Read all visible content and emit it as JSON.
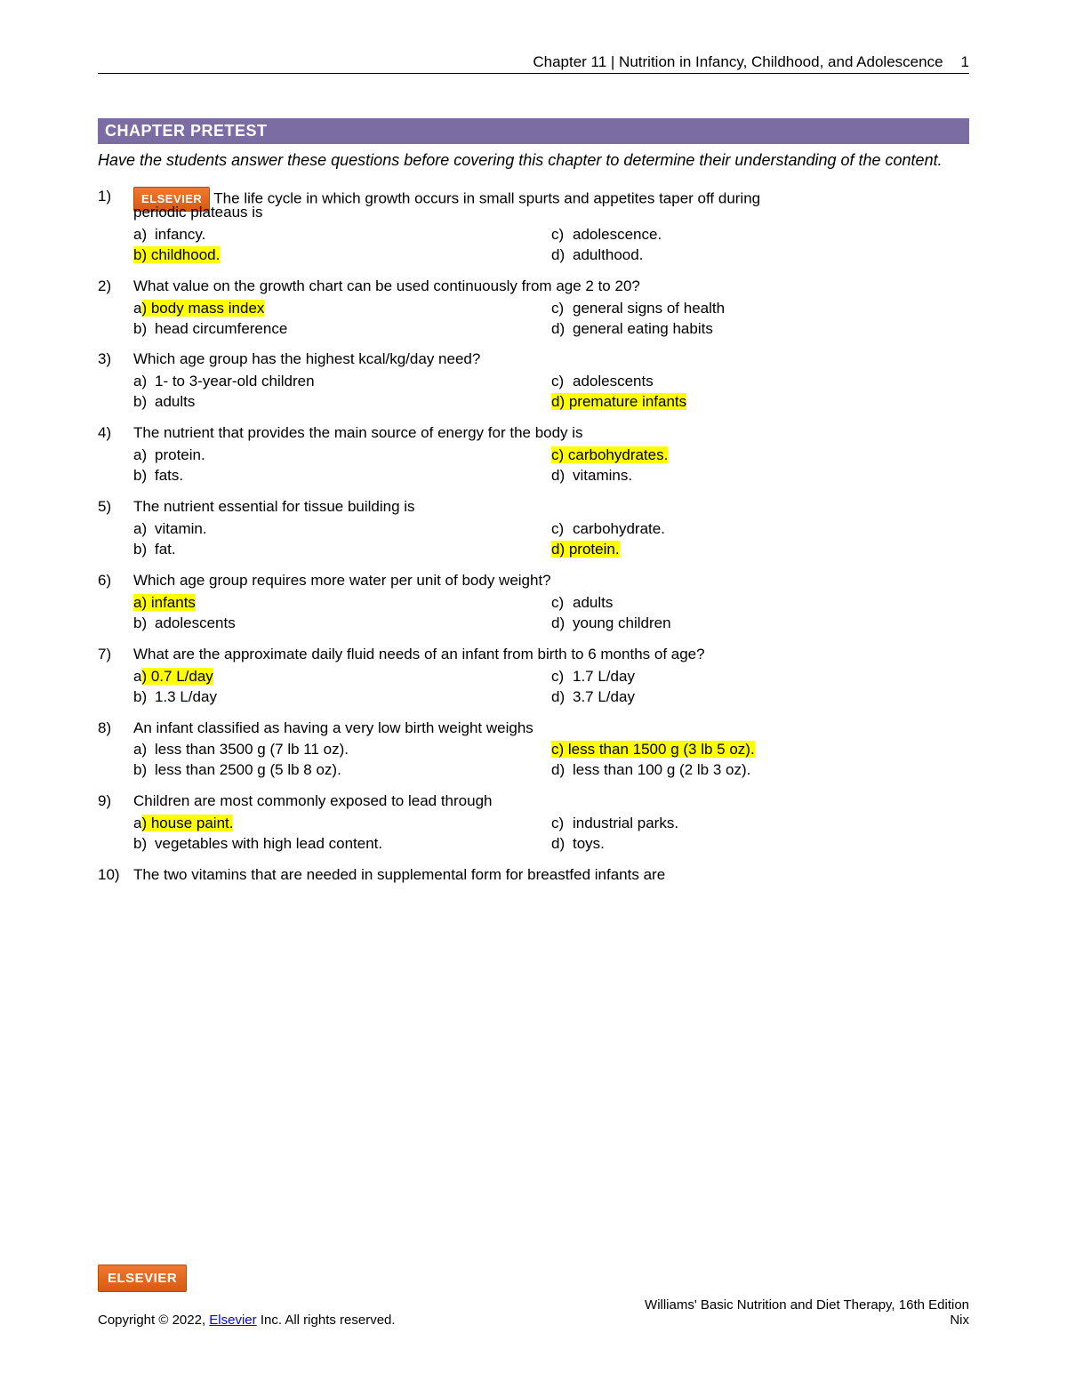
{
  "header": {
    "chapter_title": "Chapter 11  |  Nutrition in Infancy, Childhood, and Adolescence",
    "page_number": "1"
  },
  "section_title": "CHAPTER PRETEST",
  "instructions": "Have the students answer these questions before covering this chapter to determine their understanding of the content.",
  "elsevier_label": "ELSEVIER",
  "questions": [
    {
      "num": "1)",
      "text_prefix_badge": true,
      "text": "The life cycle in which growth occurs in small spurts and appetites taper off during",
      "text_cont": "periodic plateaus is",
      "options": {
        "a": {
          "letter": "a)",
          "text": "infancy.",
          "hl": false
        },
        "b": {
          "letter": "b)",
          "text": "childhood.",
          "hl": true,
          "hl_letter": true
        },
        "c": {
          "letter": "c)",
          "text": "adolescence.",
          "hl": false
        },
        "d": {
          "letter": "d)",
          "text": "adulthood.",
          "hl": false
        }
      }
    },
    {
      "num": "2)",
      "text": "What value on the growth chart can be used continuously from age 2 to 20?",
      "options": {
        "a": {
          "letter": "a)",
          "text": "body mass index",
          "hl": true,
          "hl_letter": false,
          "hl_partial_letter": true
        },
        "b": {
          "letter": "b)",
          "text": "head circumference",
          "hl": false
        },
        "c": {
          "letter": "c)",
          "text": "general signs of health",
          "hl": false
        },
        "d": {
          "letter": "d)",
          "text": "general eating habits",
          "hl": false
        }
      }
    },
    {
      "num": "3)",
      "text": "Which age group has the highest kcal/kg/day need?",
      "options": {
        "a": {
          "letter": "a)",
          "text": "1- to 3-year-old children",
          "hl": false
        },
        "b": {
          "letter": "b)",
          "text": "adults",
          "hl": false
        },
        "c": {
          "letter": "c)",
          "text": "adolescents",
          "hl": false
        },
        "d": {
          "letter": "d)",
          "text": "premature infants",
          "hl": true,
          "hl_letter": true
        }
      }
    },
    {
      "num": "4)",
      "text": "The nutrient that provides the main source of energy for the body is",
      "options": {
        "a": {
          "letter": "a)",
          "text": "protein.",
          "hl": false
        },
        "b": {
          "letter": "b)",
          "text": "fats.",
          "hl": false
        },
        "c": {
          "letter": "c)",
          "text": "carbohydrates.",
          "hl": true,
          "hl_letter": true
        },
        "d": {
          "letter": "d)",
          "text": "vitamins.",
          "hl": false
        }
      }
    },
    {
      "num": "5)",
      "text": "The nutrient essential for tissue building is",
      "options": {
        "a": {
          "letter": "a)",
          "text": "vitamin.",
          "hl": false
        },
        "b": {
          "letter": "b)",
          "text": "fat.",
          "hl": false
        },
        "c": {
          "letter": "c)",
          "text": "carbohydrate.",
          "hl": false
        },
        "d": {
          "letter": "d)",
          "text": "protein.",
          "hl": true,
          "hl_letter": true
        }
      }
    },
    {
      "num": "6)",
      "text": "Which age group requires more water per unit of body weight?",
      "options": {
        "a": {
          "letter": "a)",
          "text": "infants",
          "hl": true,
          "hl_letter": true
        },
        "b": {
          "letter": "b)",
          "text": "adolescents",
          "hl": false
        },
        "c": {
          "letter": "c)",
          "text": "adults",
          "hl": false
        },
        "d": {
          "letter": "d)",
          "text": "young children",
          "hl": false
        }
      }
    },
    {
      "num": "7)",
      "text": "What are the approximate daily fluid needs of an infant from birth to 6 months of age?",
      "options": {
        "a": {
          "letter": "a)",
          "text": "0.7 L/day",
          "hl": true,
          "hl_letter": false,
          "hl_partial_letter": true
        },
        "b": {
          "letter": "b)",
          "text": "1.3 L/day",
          "hl": false
        },
        "c": {
          "letter": "c)",
          "text": "1.7 L/day",
          "hl": false
        },
        "d": {
          "letter": "d)",
          "text": "3.7 L/day",
          "hl": false
        }
      }
    },
    {
      "num": "8)",
      "text": "An infant classified as having a very low birth weight weighs",
      "options": {
        "a": {
          "letter": "a)",
          "text": "less than 3500 g (7 lb 11 oz).",
          "hl": false
        },
        "b": {
          "letter": "b)",
          "text": "less than 2500 g (5 lb 8 oz).",
          "hl": false
        },
        "c": {
          "letter": "c)",
          "text": "less than 1500 g (3 lb 5 oz).",
          "hl": true,
          "hl_letter": true
        },
        "d": {
          "letter": "d)",
          "text": "less than 100 g (2 lb 3 oz).",
          "hl": false
        }
      }
    },
    {
      "num": "9)",
      "text": "Children are most commonly exposed to lead through",
      "options": {
        "a": {
          "letter": "a)",
          "text": "house paint.",
          "hl": true,
          "hl_letter": false,
          "hl_partial_letter": true
        },
        "b": {
          "letter": "b)",
          "text": "vegetables with high lead content.",
          "hl": false
        },
        "c": {
          "letter": "c)",
          "text": "industrial parks.",
          "hl": false
        },
        "d": {
          "letter": "d)",
          "text": "toys.",
          "hl": false
        }
      }
    },
    {
      "num": "10)",
      "text": "The two vitamins that are needed in supplemental form for breastfed infants are",
      "no_options": true
    }
  ],
  "footer": {
    "copyright_prefix": "Copyright © 2022, ",
    "copyright_link": "Elsevier",
    "copyright_suffix": " Inc. All rights reserved.",
    "book": "Williams' Basic Nutrition and Diet Therapy, 16th Edition",
    "author": "Nix"
  },
  "colors": {
    "section_bar_bg": "#7b6ca4",
    "highlight": "#ffff00",
    "badge_top": "#f07830",
    "badge_bottom": "#d85a10",
    "link": "#0000ee"
  }
}
